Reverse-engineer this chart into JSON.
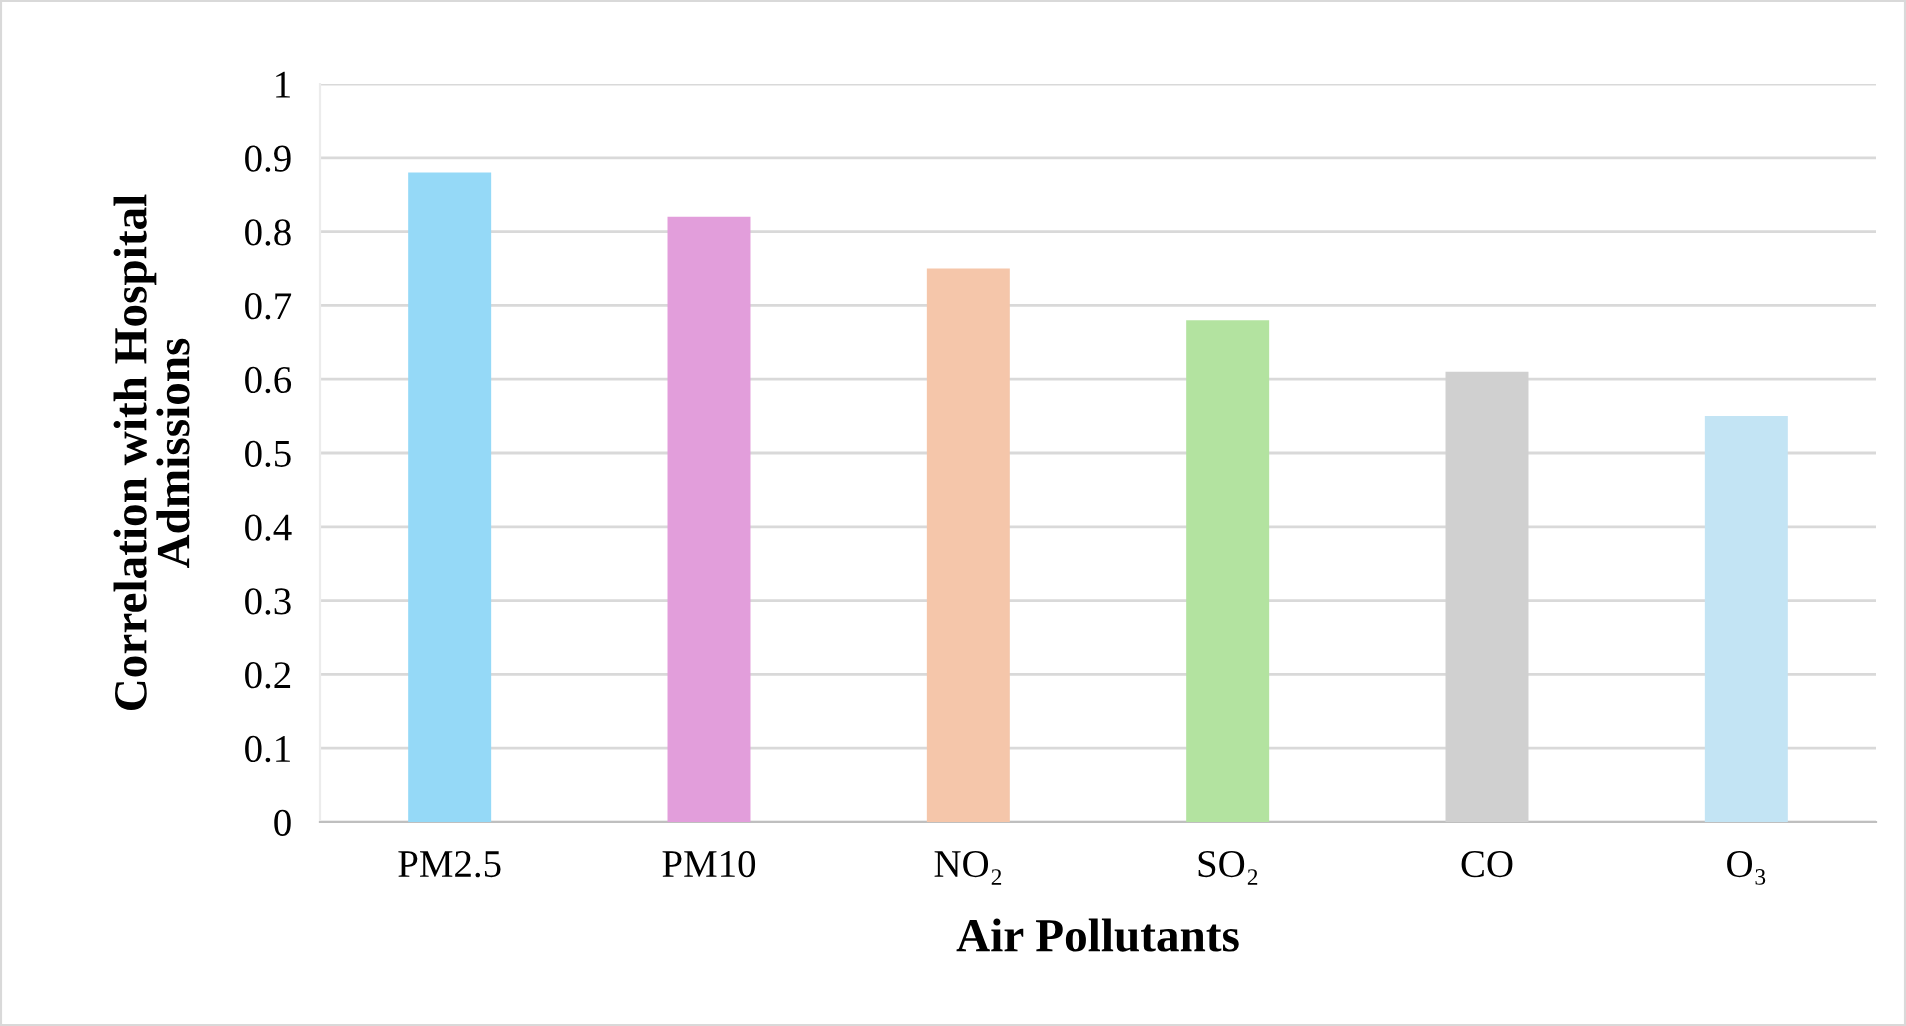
{
  "chart_data": {
    "type": "bar",
    "xlabel": "Air Pollutants",
    "ylabel": "Correlation with Hospital\nAdmissions",
    "categories": [
      "PM2.5",
      "PM10",
      "NO₂",
      "SO₂",
      "CO",
      "O₃"
    ],
    "values": [
      0.88,
      0.82,
      0.75,
      0.68,
      0.61,
      0.55
    ],
    "colors": [
      "#95d9f7",
      "#e29edb",
      "#f5c6aa",
      "#b3e3a0",
      "#d0d0d0",
      "#c3e4f4"
    ],
    "ylim": [
      0,
      1
    ],
    "yticks": [
      0,
      0.1,
      0.2,
      0.3,
      0.4,
      0.5,
      0.6,
      0.7,
      0.8,
      0.9,
      1
    ],
    "grid": "y",
    "legend": false
  }
}
